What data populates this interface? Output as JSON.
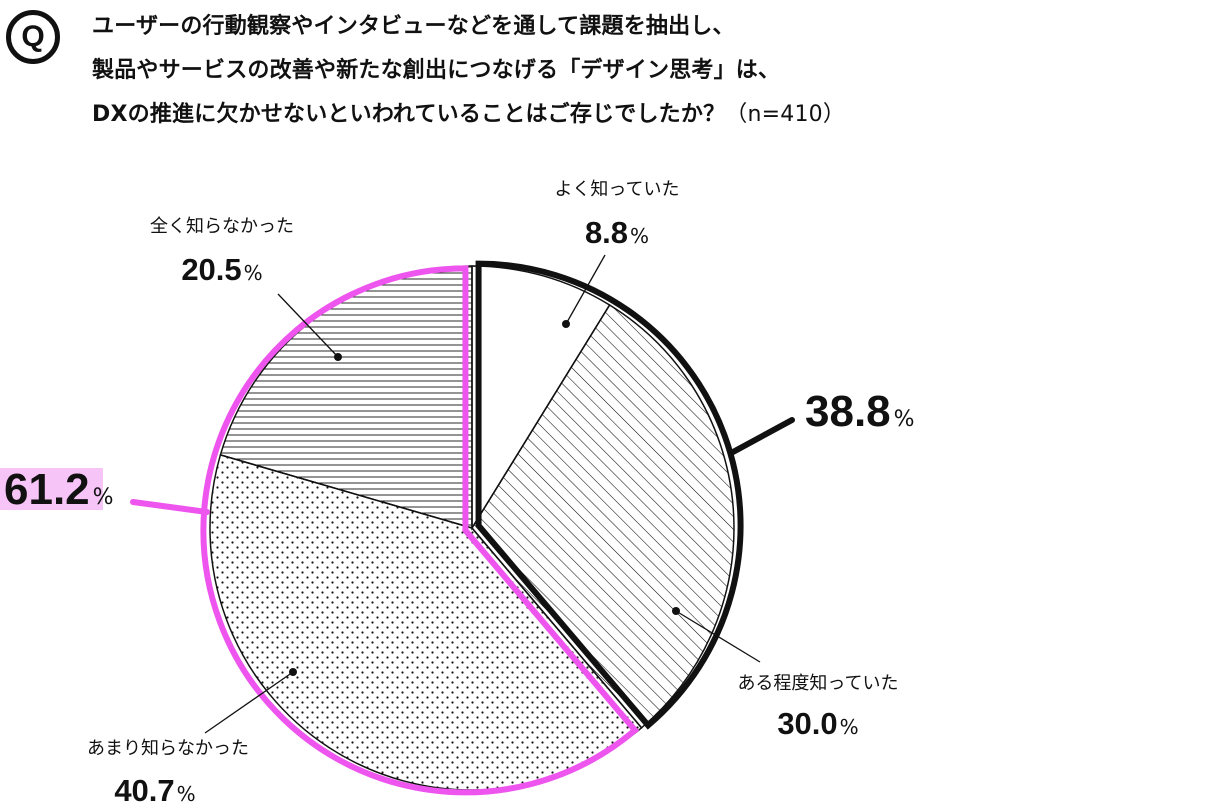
{
  "question": {
    "badge": "Q",
    "line1": "ユーザーの行動観察やインタビューなどを通して課題を抽出し、",
    "line2": "製品やサービスの改善や新たな創出につなげる「デザイン思考」は、",
    "line3": "DXの推進に欠かせないといわれていることはご存じでしたか？",
    "sample": "（n=410）"
  },
  "chart_data": {
    "type": "pie",
    "start_angle_deg": 0,
    "direction": "clockwise",
    "slices": [
      {
        "label": "よく知っていた",
        "value": 8.8,
        "display": "8.8",
        "pattern": "blank"
      },
      {
        "label": "ある程度知っていた",
        "value": 30.0,
        "display": "30.0",
        "pattern": "diagonal"
      },
      {
        "label": "あまり知らなかった",
        "value": 40.7,
        "display": "40.7",
        "pattern": "dots"
      },
      {
        "label": "全く知らなかった",
        "value": 20.5,
        "display": "20.5",
        "pattern": "horizontal"
      }
    ],
    "groups": [
      {
        "display": "38.8",
        "slices": [
          0,
          1
        ],
        "outline_color": "#111111",
        "highlight": false
      },
      {
        "display": "61.2",
        "slices": [
          2,
          3
        ],
        "outline_color": "#ee55ee",
        "highlight": true,
        "highlight_color": "#f7c4f7"
      }
    ],
    "unit": "%"
  }
}
